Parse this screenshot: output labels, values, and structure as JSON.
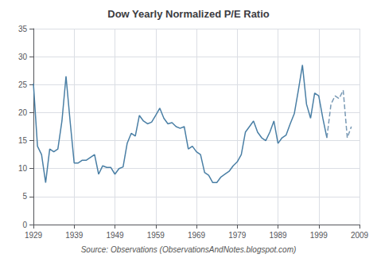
{
  "chart_data": {
    "type": "line",
    "title": "Dow Yearly Normalized P/E Ratio",
    "annotation": "Source: Observations (ObservationsAndNotes.blogspot.com)",
    "xlim": [
      1929,
      2009
    ],
    "ylim": [
      0,
      35
    ],
    "xticks": [
      1929,
      1939,
      1949,
      1959,
      1969,
      1979,
      1989,
      1999,
      2009
    ],
    "yticks": [
      0,
      5,
      10,
      15,
      20,
      25,
      30,
      35
    ],
    "grid": true,
    "series": [
      {
        "color": "#4a7fa5",
        "line_style": "solid",
        "x": [
          1929,
          1930,
          1931,
          1932,
          1933,
          1934,
          1935,
          1936,
          1937,
          1938,
          1939,
          1940,
          1941,
          1942,
          1943,
          1944,
          1945,
          1946,
          1947,
          1948,
          1949,
          1950,
          1951,
          1952,
          1953,
          1954,
          1955,
          1956,
          1957,
          1958,
          1959,
          1960,
          1961,
          1962,
          1963,
          1964,
          1965,
          1966,
          1967,
          1968,
          1969,
          1970,
          1971,
          1972,
          1973,
          1974,
          1975,
          1976,
          1977,
          1978,
          1979,
          1980,
          1981,
          1982,
          1983,
          1984,
          1985,
          1986,
          1987,
          1988,
          1989,
          1990,
          1991,
          1992,
          1993,
          1994,
          1995,
          1996,
          1997,
          1998,
          1999,
          2000,
          2001
        ],
        "values": [
          25.2,
          14.0,
          12.5,
          7.5,
          13.5,
          13.0,
          13.5,
          18.5,
          26.5,
          18.5,
          11.0,
          11.0,
          11.5,
          11.5,
          12.0,
          12.5,
          9.0,
          10.5,
          10.2,
          10.2,
          9.0,
          10.0,
          10.3,
          14.5,
          16.3,
          15.8,
          19.5,
          18.5,
          18.0,
          18.3,
          19.5,
          20.8,
          19.0,
          18.0,
          18.2,
          17.5,
          17.2,
          17.5,
          13.5,
          14.0,
          13.0,
          12.5,
          9.3,
          8.8,
          7.5,
          7.5,
          8.5,
          9.0,
          9.5,
          10.5,
          11.2,
          12.5,
          16.5,
          17.5,
          18.5,
          16.5,
          15.5,
          15.0,
          16.5,
          18.5,
          14.5,
          15.5,
          16.0,
          18.0,
          19.8,
          24.0,
          28.5,
          21.5,
          19.0,
          23.5,
          23.0,
          19.0,
          15.5
        ]
      },
      {
        "color": "#7a9ab5",
        "line_style": "dashed",
        "x": [
          2001,
          2002,
          2003,
          2004,
          2005,
          2006,
          2007
        ],
        "values": [
          15.5,
          21.5,
          23.0,
          22.5,
          24.0,
          15.5,
          17.5
        ]
      }
    ]
  }
}
